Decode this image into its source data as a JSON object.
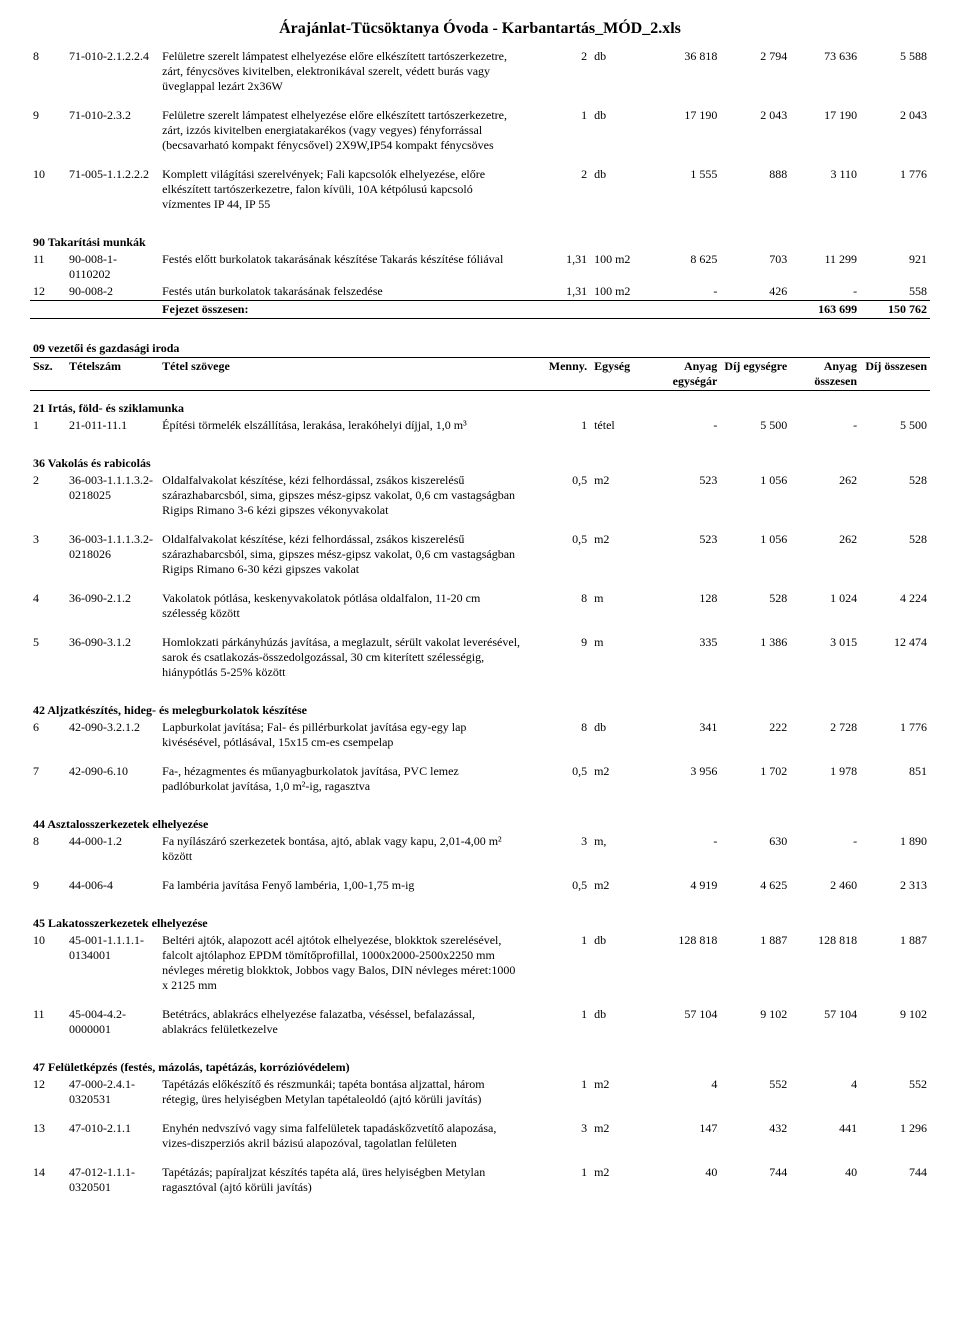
{
  "title": "Árajánlat-Tücsöktanya Óvoda - Karbantartás_MÓD_2.xls",
  "top_rows": [
    {
      "ssz": "8",
      "code": "71-010-2.1.2.2.4",
      "desc": "Felületre szerelt lámpatest elhelyezése előre elkészített tartószerkezetre, zárt, fénycsöves kivitelben, elektronikával szerelt, védett burás vagy üveglappal lezárt 2x36W",
      "qty": "2",
      "unit": "db",
      "a": "36 818",
      "b": "2 794",
      "c": "73 636",
      "d": "5 588"
    },
    {
      "ssz": "9",
      "code": "71-010-2.3.2",
      "desc": "Felületre szerelt lámpatest elhelyezése előre elkészített tartószerkezetre, zárt, izzós kivitelben energiatakarékos (vagy vegyes) fényforrással (becsavarható kompakt fénycsővel) 2X9W,IP54 kompakt fénycsöves",
      "qty": "1",
      "unit": "db",
      "a": "17 190",
      "b": "2 043",
      "c": "17 190",
      "d": "2 043"
    },
    {
      "ssz": "10",
      "code": "71-005-1.1.2.2.2",
      "desc": "Komplett világítási szerelvények; Fali kapcsolók elhelyezése, előre elkészített tartószerkezetre, falon kívüli, 10A kétpólusú kapcsoló vízmentes IP 44, IP 55",
      "qty": "2",
      "unit": "db",
      "a": "1 555",
      "b": "888",
      "c": "3 110",
      "d": "1 776"
    }
  ],
  "sec90": {
    "label": "90 Takarítási munkák",
    "rows": [
      {
        "ssz": "11",
        "code": "90-008-1-0110202",
        "desc": "Festés előtt burkolatok takarásának készítése Takarás készítése fóliával",
        "qty": "1,31",
        "unit": "100 m2",
        "a": "8 625",
        "b": "703",
        "c": "11 299",
        "d": "921"
      },
      {
        "ssz": "12",
        "code": "90-008-2",
        "desc": "Festés után burkolatok takarásának felszedése",
        "qty": "1,31",
        "unit": "100 m2",
        "a": "-",
        "b": "426",
        "c": "-",
        "d": "558"
      }
    ],
    "total_label": "Fejezet összesen:",
    "total_c": "163 699",
    "total_d": "150 762"
  },
  "sec09": {
    "title": "09  vezetői és gazdasági iroda",
    "hdr": {
      "ssz": "Ssz.",
      "code": "Tételszám",
      "desc": "Tétel szövege",
      "qty": "Menny.",
      "unit": "Egység",
      "a": "Anyag egységár",
      "b": "Díj egységre",
      "c": "Anyag összesen",
      "d": "Díj összesen"
    }
  },
  "sec21": {
    "label": "21 Irtás, föld- és sziklamunka",
    "rows": [
      {
        "ssz": "1",
        "code": "21-011-11.1",
        "desc": "Építési törmelék elszállítása, lerakása, lerakóhelyi díjjal, 1,0 m³",
        "qty": "1",
        "unit": "tétel",
        "a": "-",
        "b": "5 500",
        "c": "-",
        "d": "5 500"
      }
    ]
  },
  "sec36": {
    "label": "36 Vakolás és rabicolás",
    "rows": [
      {
        "ssz": "2",
        "code": "36-003-1.1.1.3.2-0218025",
        "desc": "Oldalfalvakolat készítése, kézi felhordással, zsákos kiszerelésű szárazhabarcsból, sima, gipszes mész-gipsz vakolat, 0,6 cm vastagságban Rigips Rimano 3-6 kézi gipszes vékonyvakolat",
        "qty": "0,5",
        "unit": "m2",
        "a": "523",
        "b": "1 056",
        "c": "262",
        "d": "528"
      },
      {
        "ssz": "3",
        "code": "36-003-1.1.1.3.2-0218026",
        "desc": "Oldalfalvakolat készítése, kézi felhordással, zsákos kiszerelésű szárazhabarcsból, sima, gipszes mész-gipsz vakolat, 0,6 cm vastagságban Rigips Rimano 6-30 kézi gipszes vakolat",
        "qty": "0,5",
        "unit": "m2",
        "a": "523",
        "b": "1 056",
        "c": "262",
        "d": "528"
      },
      {
        "ssz": "4",
        "code": "36-090-2.1.2",
        "desc": "Vakolatok pótlása, keskenyvakolatok pótlása oldalfalon, 11-20 cm szélesség között",
        "qty": "8",
        "unit": "m",
        "a": "128",
        "b": "528",
        "c": "1 024",
        "d": "4 224"
      },
      {
        "ssz": "5",
        "code": "36-090-3.1.2",
        "desc": "Homlokzati párkányhúzás javítása, a meglazult, sérült vakolat leverésével, sarok és csatlakozás-összedolgozással, 30 cm kiterített szélességig, hiánypótlás 5-25% között",
        "qty": "9",
        "unit": "m",
        "a": "335",
        "b": "1 386",
        "c": "3 015",
        "d": "12 474"
      }
    ]
  },
  "sec42": {
    "label": "42 Aljzatkészítés, hideg- és melegburkolatok készítése",
    "rows": [
      {
        "ssz": "6",
        "code": "42-090-3.2.1.2",
        "desc": "Lapburkolat javítása; Fal- és pillérburkolat javítása egy-egy lap kivésésével, pótlásával, 15x15 cm-es csempelap",
        "qty": "8",
        "unit": "db",
        "a": "341",
        "b": "222",
        "c": "2 728",
        "d": "1 776"
      },
      {
        "ssz": "7",
        "code": "42-090-6.10",
        "desc": "Fa-, hézagmentes és műanyagburkolatok javítása, PVC lemez padlóburkolat javítása, 1,0 m²-ig, ragasztva",
        "qty": "0,5",
        "unit": "m2",
        "a": "3 956",
        "b": "1 702",
        "c": "1 978",
        "d": "851"
      }
    ]
  },
  "sec44": {
    "label": "44 Asztalosszerkezetek elhelyezése",
    "rows": [
      {
        "ssz": "8",
        "code": "44-000-1.2",
        "desc": "Fa nyílászáró szerkezetek bontása,  ajtó, ablak vagy kapu, 2,01-4,00 m² között",
        "qty": "3",
        "unit": "m,",
        "a": "-",
        "b": "630",
        "c": "-",
        "d": "1 890"
      },
      {
        "ssz": "9",
        "code": "44-006-4",
        "desc": "Fa lambéria javítása Fenyő lambéria, 1,00-1,75 m-ig",
        "qty": "0,5",
        "unit": "m2",
        "a": "4 919",
        "b": "4 625",
        "c": "2 460",
        "d": "2 313"
      }
    ]
  },
  "sec45": {
    "label": "45 Lakatosszerkezetek elhelyezése",
    "rows": [
      {
        "ssz": "10",
        "code": "45-001-1.1.1.1-0134001",
        "desc": "Beltéri ajtók, alapozott acél ajtótok elhelyezése, blokktok szerelésével, falcolt ajtólaphoz EPDM tömítőprofillal, 1000x2000-2500x2250 mm névleges méretig blokktok, Jobbos vagy Balos, DIN névleges méret:1000 x 2125 mm",
        "qty": "1",
        "unit": "db",
        "a": "128 818",
        "b": "1 887",
        "c": "128 818",
        "d": "1 887"
      },
      {
        "ssz": "11",
        "code": "45-004-4.2-0000001",
        "desc": "Betétrács, ablakrács elhelyezése falazatba, véséssel, befalazással, ablakrács felületkezelve",
        "qty": "1",
        "unit": "db",
        "a": "57 104",
        "b": "9 102",
        "c": "57 104",
        "d": "9 102"
      }
    ]
  },
  "sec47": {
    "label": "47 Felületképzés (festés, mázolás, tapétázás, korrózióvédelem)",
    "rows": [
      {
        "ssz": "12",
        "code": "47-000-2.4.1-0320531",
        "desc": "Tapétázás előkészítő és részmunkái; tapéta bontása aljzattal, három rétegig, üres helyiségben Metylan tapétaleoldó (ajtó körüli javítás)",
        "qty": "1",
        "unit": "m2",
        "a": "4",
        "b": "552",
        "c": "4",
        "d": "552"
      },
      {
        "ssz": "13",
        "code": "47-010-2.1.1",
        "desc": "Enyhén nedvszívó vagy sima falfelületek  tapadáskőzvetítő alapozása, vizes-diszperziós akril bázisú alapozóval, tagolatlan felületen",
        "qty": "3",
        "unit": "m2",
        "a": "147",
        "b": "432",
        "c": "441",
        "d": "1 296"
      },
      {
        "ssz": "14",
        "code": "47-012-1.1.1-0320501",
        "desc": "Tapétázás; papíraljzat készítés tapéta alá, üres helyiségben Metylan ragasztóval (ajtó körüli javítás)",
        "qty": "1",
        "unit": "m2",
        "a": "40",
        "b": "744",
        "c": "40",
        "d": "744"
      }
    ]
  }
}
